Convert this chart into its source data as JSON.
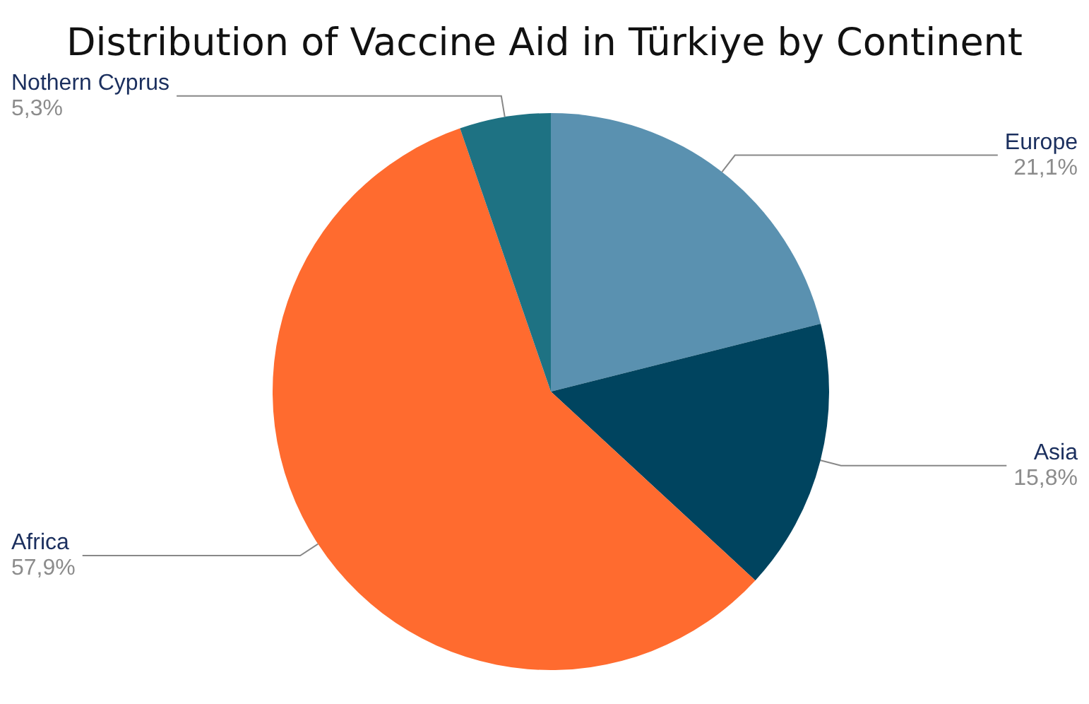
{
  "chart_data": {
    "type": "pie",
    "title": "Distribution of Vaccine Aid in Türkiye by Continent",
    "categories": [
      "Europe",
      "Asia",
      "Africa",
      "Nothern Cyprus"
    ],
    "values": [
      21.1,
      15.8,
      57.9,
      5.3
    ],
    "value_labels": [
      "21,1%",
      "15,8%",
      "57,9%",
      "5,3%"
    ],
    "colors": [
      "#5a91b0",
      "#00445f",
      "#ff6b2f",
      "#1e7283"
    ],
    "legend": false
  }
}
